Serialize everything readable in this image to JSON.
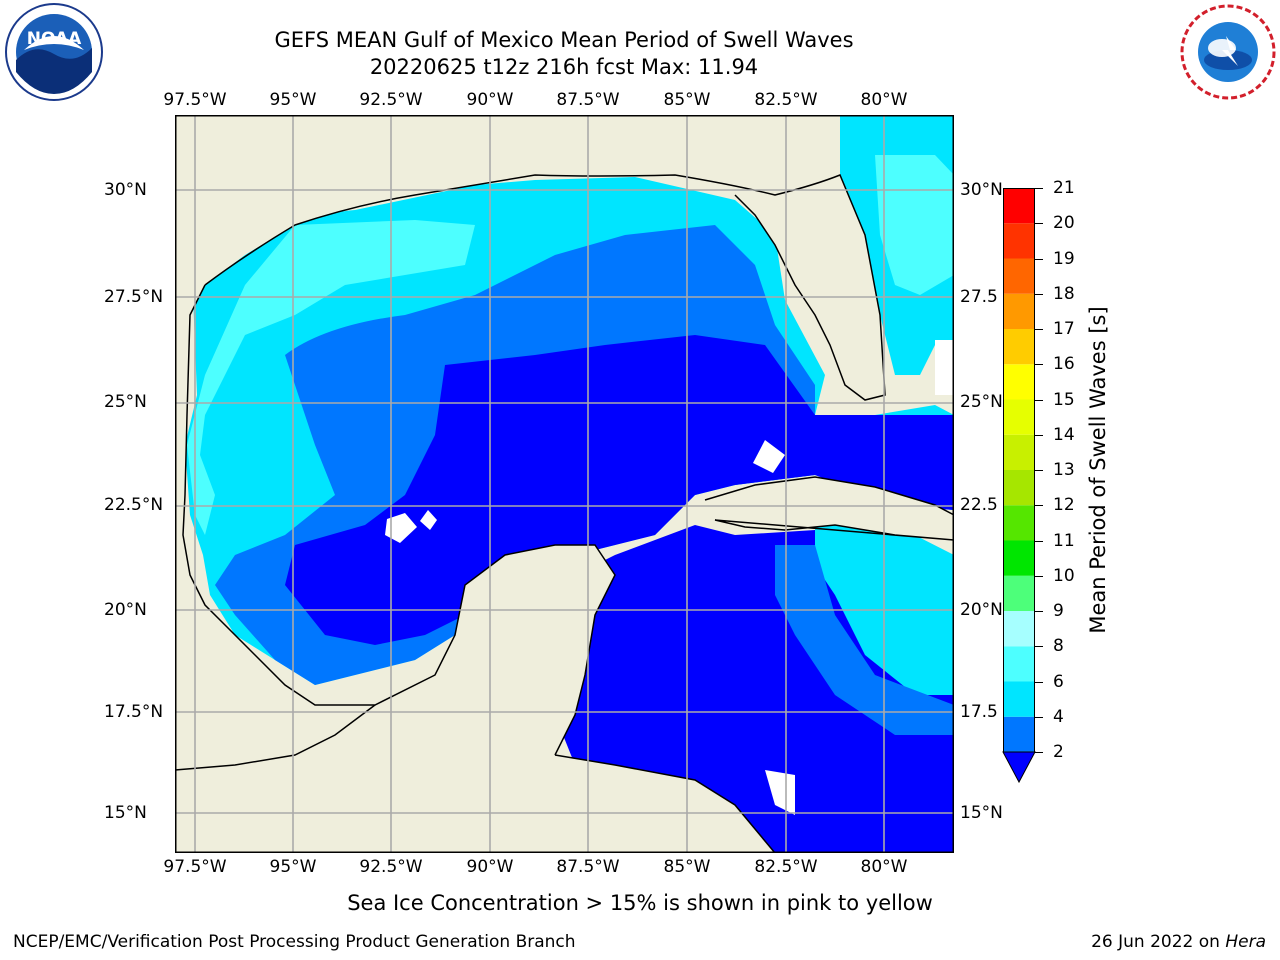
{
  "title": {
    "line1": "GEFS MEAN Gulf of Mexico Mean Period of Swell Waves",
    "line2": "20220625 t12z 216h fcst   Max: 11.94"
  },
  "axes": {
    "lon_labels": [
      "97.5°W",
      "95°W",
      "92.5°W",
      "90°W",
      "87.5°W",
      "85°W",
      "82.5°W",
      "80°W"
    ],
    "lat_labels_left": [
      "30°N",
      "27.5°N",
      "25°N",
      "22.5°N",
      "20°N",
      "17.5°N",
      "15°N"
    ],
    "lat_labels_right": [
      "30°N",
      "27.5",
      "25°N",
      "22.5",
      "20°N",
      "17.5",
      "15°N"
    ],
    "lon_values": [
      -97.5,
      -95,
      -92.5,
      -90,
      -87.5,
      -85,
      -82.5,
      -80
    ],
    "lat_values": [
      30,
      27.5,
      25,
      22.5,
      20,
      17.5,
      15
    ],
    "extent": {
      "lon_min": -98,
      "lon_max": -78.2,
      "lat_min": 14.0,
      "lat_max": 31.8
    }
  },
  "colorbar": {
    "label": "Mean Period of Swell Waves [s]",
    "ticks": [
      "21",
      "20",
      "19",
      "18",
      "17",
      "16",
      "15",
      "14",
      "13",
      "12",
      "11",
      "10",
      "9",
      "8",
      "6",
      "4",
      "2"
    ],
    "levels": [
      2,
      4,
      6,
      8,
      9,
      10,
      11,
      12,
      13,
      14,
      15,
      16,
      17,
      18,
      19,
      20,
      21
    ],
    "colors": [
      "#0000ff",
      "#0077ff",
      "#00e5ff",
      "#4dffff",
      "#a6ffff",
      "#4dff7a",
      "#00e600",
      "#55e600",
      "#a6e600",
      "#c8f000",
      "#e6ff00",
      "#ffff00",
      "#ffcc00",
      "#ff9900",
      "#ff6600",
      "#ff3300",
      "#ff0000"
    ],
    "under_color": "#0000ff"
  },
  "map_colors": {
    "land": "#efeedc",
    "coast": "#000000",
    "grid": "#aaaaaa",
    "no_data": "#ffffff"
  },
  "footer": {
    "note": "Sea Ice Concentration > 15% is shown in pink to yellow",
    "credit": "NCEP/EMC/Verification Post Processing Product Generation Branch",
    "date": "26 Jun 2022 on",
    "host": "Hera"
  }
}
